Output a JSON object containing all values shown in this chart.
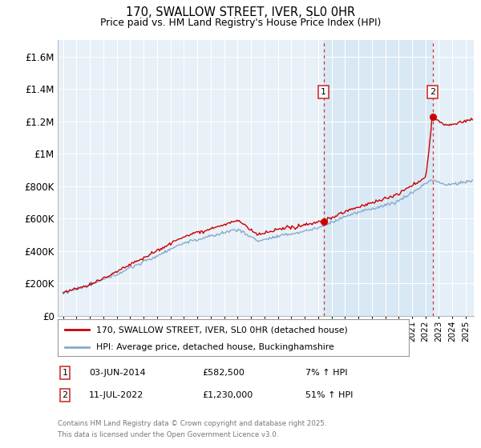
{
  "title": "170, SWALLOW STREET, IVER, SL0 0HR",
  "subtitle": "Price paid vs. HM Land Registry's House Price Index (HPI)",
  "ylim": [
    0,
    1700000
  ],
  "yticks": [
    0,
    200000,
    400000,
    600000,
    800000,
    1000000,
    1200000,
    1400000,
    1600000
  ],
  "ytick_labels": [
    "£0",
    "£200K",
    "£400K",
    "£600K",
    "£800K",
    "£1M",
    "£1.2M",
    "£1.4M",
    "£1.6M"
  ],
  "xlim_min": 1994.6,
  "xlim_max": 2025.6,
  "marker1_date": 2014.42,
  "marker1_price": 582500,
  "marker2_date": 2022.53,
  "marker2_price": 1230000,
  "legend_line1": "170, SWALLOW STREET, IVER, SL0 0HR (detached house)",
  "legend_line2": "HPI: Average price, detached house, Buckinghamshire",
  "line_color_red": "#cc0000",
  "line_color_blue": "#88aacc",
  "shade_color_between": "#d8e8f4",
  "shade_color_right": "#e4eff8",
  "vline_color": "#cc3333",
  "bg_color": "#e8f0f8",
  "grid_color": "#ffffff",
  "ann1_date": "03-JUN-2014",
  "ann1_price": "£582,500",
  "ann1_hpi": "7% ↑ HPI",
  "ann2_date": "11-JUL-2022",
  "ann2_price": "£1,230,000",
  "ann2_hpi": "51% ↑ HPI",
  "footer_line1": "Contains HM Land Registry data © Crown copyright and database right 2025.",
  "footer_line2": "This data is licensed under the Open Government Licence v3.0."
}
